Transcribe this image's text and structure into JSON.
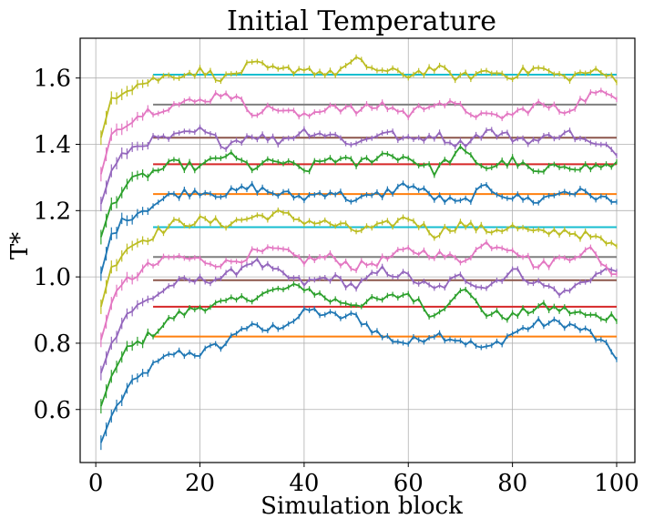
{
  "chart_data": {
    "type": "line",
    "title": "Initial Temperature",
    "xlabel": "Simulation block",
    "ylabel": "T*",
    "xlim": [
      -3,
      103.5
    ],
    "ylim": [
      0.44,
      1.72
    ],
    "xticks": [
      0,
      20,
      40,
      60,
      80,
      100
    ],
    "yticks": [
      0.6,
      0.8,
      1.0,
      1.2,
      1.4,
      1.6
    ],
    "xtick_labels": [
      "0",
      "20",
      "40",
      "60",
      "80",
      "100"
    ],
    "ytick_labels": [
      "0.6",
      "0.8",
      "1.0",
      "1.2",
      "1.4",
      "1.6"
    ],
    "grid": true,
    "legend": false,
    "series": [
      {
        "color": "#1f77b4",
        "start": 0.5,
        "target": 0.82,
        "x": [
          1,
          3,
          6,
          10,
          15,
          20,
          25,
          28,
          33,
          38,
          41,
          46,
          50,
          55,
          60,
          65,
          70,
          75,
          80,
          85,
          90,
          95,
          100
        ],
        "values": [
          0.5,
          0.58,
          0.66,
          0.72,
          0.77,
          0.77,
          0.8,
          0.85,
          0.84,
          0.87,
          0.9,
          0.88,
          0.88,
          0.82,
          0.8,
          0.83,
          0.81,
          0.78,
          0.83,
          0.86,
          0.86,
          0.83,
          0.76
        ]
      },
      {
        "color": "#2ca02c",
        "start": 0.61,
        "target": 0.91,
        "x": [
          1,
          3,
          6,
          10,
          15,
          20,
          25,
          30,
          35,
          40,
          45,
          50,
          55,
          60,
          65,
          70,
          75,
          80,
          85,
          90,
          95,
          100
        ],
        "values": [
          0.61,
          0.7,
          0.78,
          0.82,
          0.88,
          0.91,
          0.92,
          0.94,
          0.96,
          0.97,
          0.93,
          0.92,
          0.93,
          0.95,
          0.88,
          0.97,
          0.89,
          0.88,
          0.91,
          0.9,
          0.88,
          0.88
        ]
      },
      {
        "color": "#9467bd",
        "start": 0.71,
        "target": 0.99,
        "x": [
          1,
          3,
          6,
          10,
          15,
          20,
          25,
          30,
          35,
          40,
          45,
          50,
          55,
          60,
          65,
          70,
          75,
          80,
          85,
          90,
          95,
          100
        ],
        "values": [
          0.71,
          0.8,
          0.89,
          0.93,
          0.98,
          0.99,
          1.0,
          1.05,
          1.01,
          0.98,
          1.0,
          0.97,
          1.02,
          1.0,
          0.96,
          1.0,
          0.97,
          1.02,
          0.98,
          0.95,
          1.0,
          1.03
        ]
      },
      {
        "color": "#e377c2",
        "start": 0.81,
        "target": 1.06,
        "x": [
          1,
          3,
          6,
          10,
          15,
          20,
          25,
          30,
          35,
          40,
          45,
          50,
          55,
          60,
          65,
          70,
          75,
          80,
          85,
          90,
          95,
          100
        ],
        "values": [
          0.81,
          0.92,
          0.99,
          1.03,
          1.06,
          1.05,
          1.04,
          1.07,
          1.08,
          1.05,
          1.06,
          1.03,
          1.05,
          1.08,
          1.07,
          1.05,
          1.1,
          1.09,
          1.03,
          1.06,
          1.08,
          1.0
        ]
      },
      {
        "color": "#bcbd22",
        "start": 0.91,
        "target": 1.15,
        "x": [
          1,
          3,
          6,
          10,
          15,
          20,
          25,
          30,
          35,
          40,
          45,
          50,
          55,
          60,
          65,
          70,
          75,
          80,
          85,
          90,
          95,
          100
        ],
        "values": [
          0.91,
          1.03,
          1.09,
          1.12,
          1.16,
          1.17,
          1.16,
          1.18,
          1.19,
          1.17,
          1.16,
          1.14,
          1.15,
          1.18,
          1.13,
          1.16,
          1.14,
          1.15,
          1.13,
          1.14,
          1.12,
          1.09
        ]
      },
      {
        "color": "#1f77b4",
        "start": 1.01,
        "target": 1.25,
        "x": [
          1,
          3,
          6,
          10,
          15,
          20,
          25,
          30,
          35,
          40,
          45,
          50,
          55,
          60,
          65,
          70,
          75,
          80,
          85,
          90,
          95,
          100
        ],
        "values": [
          1.01,
          1.13,
          1.18,
          1.21,
          1.25,
          1.26,
          1.25,
          1.27,
          1.25,
          1.24,
          1.26,
          1.23,
          1.25,
          1.28,
          1.24,
          1.22,
          1.27,
          1.24,
          1.23,
          1.26,
          1.25,
          1.22
        ]
      },
      {
        "color": "#2ca02c",
        "start": 1.12,
        "target": 1.34,
        "x": [
          1,
          3,
          6,
          10,
          15,
          20,
          25,
          30,
          35,
          40,
          45,
          50,
          55,
          60,
          65,
          70,
          75,
          80,
          85,
          90,
          95,
          100
        ],
        "values": [
          1.12,
          1.22,
          1.28,
          1.31,
          1.34,
          1.33,
          1.37,
          1.33,
          1.35,
          1.32,
          1.36,
          1.34,
          1.37,
          1.36,
          1.32,
          1.38,
          1.33,
          1.35,
          1.31,
          1.34,
          1.33,
          1.34
        ]
      },
      {
        "color": "#9467bd",
        "start": 1.22,
        "target": 1.42,
        "x": [
          1,
          3,
          6,
          10,
          15,
          20,
          25,
          30,
          35,
          40,
          45,
          50,
          55,
          60,
          65,
          70,
          75,
          80,
          85,
          90,
          95,
          100
        ],
        "values": [
          1.22,
          1.32,
          1.38,
          1.41,
          1.42,
          1.44,
          1.4,
          1.43,
          1.41,
          1.44,
          1.43,
          1.4,
          1.44,
          1.41,
          1.43,
          1.4,
          1.44,
          1.42,
          1.41,
          1.44,
          1.4,
          1.38
        ]
      },
      {
        "color": "#e377c2",
        "start": 1.31,
        "target": 1.52,
        "x": [
          1,
          3,
          6,
          10,
          15,
          20,
          25,
          30,
          35,
          40,
          45,
          50,
          55,
          60,
          65,
          70,
          75,
          80,
          85,
          90,
          95,
          100
        ],
        "values": [
          1.31,
          1.43,
          1.47,
          1.5,
          1.52,
          1.53,
          1.56,
          1.5,
          1.51,
          1.48,
          1.52,
          1.5,
          1.52,
          1.49,
          1.53,
          1.51,
          1.48,
          1.49,
          1.52,
          1.5,
          1.55,
          1.55
        ]
      },
      {
        "color": "#bcbd22",
        "start": 1.42,
        "target": 1.61,
        "x": [
          1,
          3,
          6,
          10,
          15,
          20,
          25,
          30,
          35,
          40,
          45,
          50,
          55,
          60,
          65,
          70,
          75,
          80,
          85,
          90,
          95,
          100
        ],
        "values": [
          1.42,
          1.54,
          1.57,
          1.59,
          1.61,
          1.62,
          1.6,
          1.64,
          1.62,
          1.63,
          1.61,
          1.65,
          1.62,
          1.61,
          1.63,
          1.6,
          1.62,
          1.61,
          1.63,
          1.6,
          1.62,
          1.6
        ]
      }
    ],
    "reference_lines": [
      {
        "y": 0.82,
        "x_start": 11,
        "x_end": 100,
        "color": "#ff7f0e"
      },
      {
        "y": 0.91,
        "x_start": 11,
        "x_end": 100,
        "color": "#d62728"
      },
      {
        "y": 0.99,
        "x_start": 11,
        "x_end": 100,
        "color": "#8c564b"
      },
      {
        "y": 1.06,
        "x_start": 11,
        "x_end": 100,
        "color": "#7f7f7f"
      },
      {
        "y": 1.15,
        "x_start": 11,
        "x_end": 100,
        "color": "#17becf"
      },
      {
        "y": 1.25,
        "x_start": 11,
        "x_end": 100,
        "color": "#ff7f0e"
      },
      {
        "y": 1.34,
        "x_start": 11,
        "x_end": 100,
        "color": "#d62728"
      },
      {
        "y": 1.42,
        "x_start": 11,
        "x_end": 100,
        "color": "#8c564b"
      },
      {
        "y": 1.52,
        "x_start": 11,
        "x_end": 100,
        "color": "#7f7f7f"
      },
      {
        "y": 1.61,
        "x_start": 11,
        "x_end": 100,
        "color": "#17becf"
      }
    ]
  }
}
